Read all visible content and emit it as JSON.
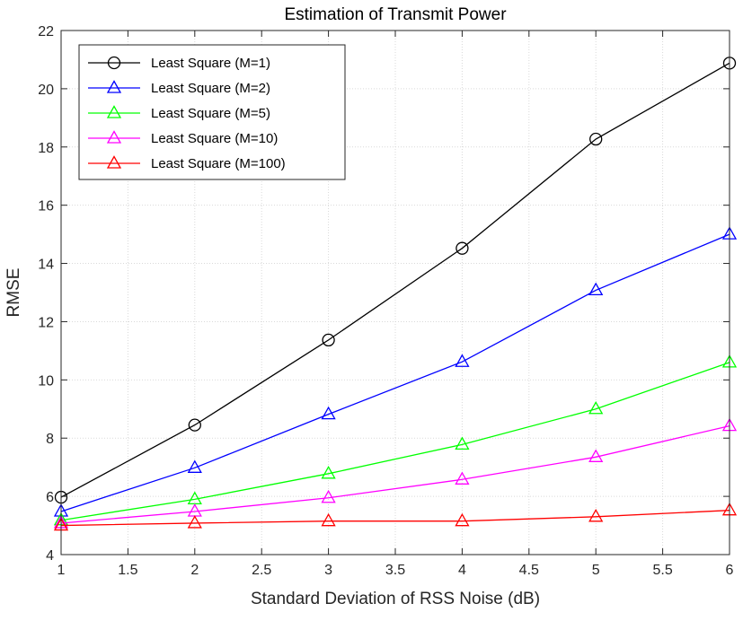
{
  "chart_data": {
    "type": "line",
    "title": "Estimation of Transmit Power",
    "xlabel": "Standard Deviation of RSS Noise (dB)",
    "ylabel": "RMSE",
    "xlim": [
      1,
      6
    ],
    "ylim": [
      4,
      22
    ],
    "xticks": [
      1,
      1.5,
      2,
      2.5,
      3,
      3.5,
      4,
      4.5,
      5,
      5.5,
      6
    ],
    "yticks": [
      4,
      6,
      8,
      10,
      12,
      14,
      16,
      18,
      20,
      22
    ],
    "grid": true,
    "legend_position": "top-left",
    "x": [
      1,
      2,
      3,
      4,
      5,
      6
    ],
    "series": [
      {
        "name": "Least Square (M=1)",
        "color": "#000000",
        "marker": "circle",
        "values": [
          5.97,
          8.45,
          11.37,
          14.52,
          18.27,
          20.88
        ]
      },
      {
        "name": "Least Square (M=2)",
        "color": "#0000ff",
        "marker": "triangle",
        "values": [
          5.48,
          6.98,
          8.82,
          10.62,
          13.08,
          15.0
        ]
      },
      {
        "name": "Least Square (M=5)",
        "color": "#00ff00",
        "marker": "triangle",
        "values": [
          5.18,
          5.9,
          6.78,
          7.78,
          9.0,
          10.6
        ]
      },
      {
        "name": "Least Square (M=10)",
        "color": "#ff00ff",
        "marker": "triangle",
        "values": [
          5.08,
          5.48,
          5.95,
          6.58,
          7.35,
          8.42
        ]
      },
      {
        "name": "Least Square (M=100)",
        "color": "#ff0000",
        "marker": "triangle",
        "values": [
          5.0,
          5.08,
          5.15,
          5.15,
          5.3,
          5.52
        ]
      }
    ]
  }
}
